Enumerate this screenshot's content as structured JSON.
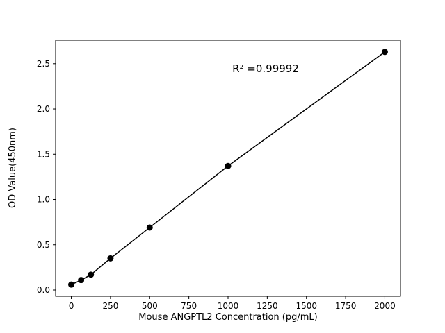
{
  "chart_data": {
    "type": "scatter",
    "title": "",
    "xlabel": "Mouse ANGPTL2 Concentration (pg/mL)",
    "ylabel": "OD Value(450nm)",
    "annotation": "R² =0.99992",
    "x": [
      0,
      62.5,
      125,
      250,
      500,
      1000,
      2000
    ],
    "y": [
      0.06,
      0.11,
      0.17,
      0.35,
      0.69,
      1.37,
      2.63
    ],
    "line": true,
    "marker_color": "#000000",
    "line_color": "#000000",
    "xlim": [
      -100,
      2100
    ],
    "ylim": [
      -0.069,
      2.759
    ],
    "x_ticks": [
      0,
      250,
      500,
      750,
      1000,
      1250,
      1500,
      1750,
      2000
    ],
    "x_tick_labels": [
      "0",
      "250",
      "500",
      "750",
      "1000",
      "1250",
      "1500",
      "1750",
      "2000"
    ],
    "y_ticks": [
      0.0,
      0.5,
      1.0,
      1.5,
      2.0,
      2.5
    ],
    "y_tick_labels": [
      "0.0",
      "0.5",
      "1.0",
      "1.5",
      "2.0",
      "2.5"
    ],
    "grid": false,
    "legend": null
  }
}
